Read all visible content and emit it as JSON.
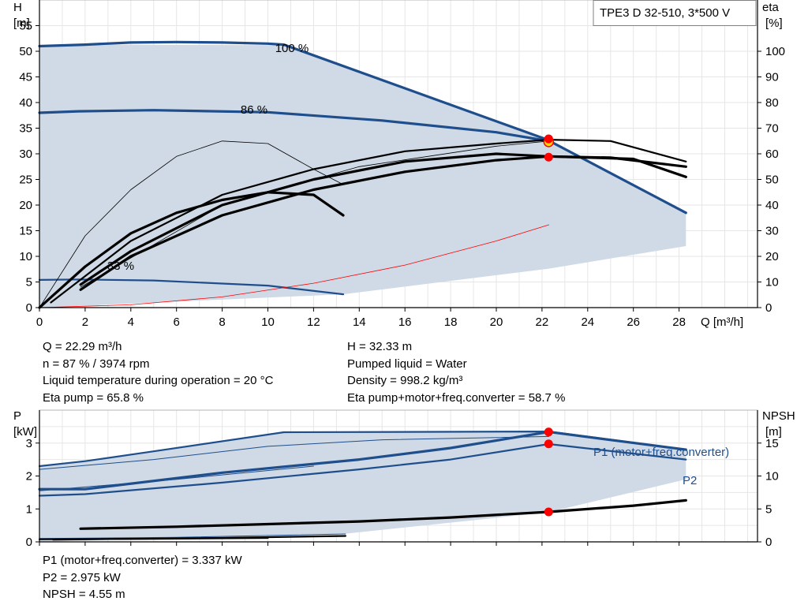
{
  "chart_data": [
    {
      "type": "line",
      "title": "TPE3 D 32-510, 3*500 V",
      "y_axis": {
        "title": "H",
        "unit": "[m]",
        "range": [
          0,
          60
        ],
        "ticks": [
          0,
          5,
          10,
          15,
          20,
          25,
          30,
          35,
          40,
          45,
          50,
          55
        ]
      },
      "y2_axis": {
        "title": "eta",
        "unit": "[%]",
        "range": [
          0,
          120
        ],
        "ticks": [
          0,
          10,
          20,
          30,
          40,
          50,
          60,
          70,
          80,
          90,
          100
        ]
      },
      "x_axis": {
        "label": "Q [m³/h]",
        "range": [
          0,
          30
        ],
        "ticks": [
          0,
          2,
          4,
          6,
          8,
          10,
          12,
          14,
          16,
          18,
          20,
          22,
          24,
          26,
          28
        ]
      },
      "grid": true,
      "curve_labels": [
        {
          "text": "100 %",
          "x": 10.7,
          "y": 53.4
        },
        {
          "text": "86 %",
          "x": 9.3,
          "y": 40.2
        },
        {
          "text": "33 %",
          "x": 3.5,
          "y": 7.1
        }
      ],
      "envelope": {
        "upper": [
          [
            0,
            51.0
          ],
          [
            2.2,
            51.3
          ],
          [
            10.7,
            51.2
          ],
          [
            22.2,
            32.8
          ],
          [
            28.3,
            18.5
          ]
        ],
        "lower": [
          [
            28.3,
            12.0
          ],
          [
            22.3,
            7.6
          ],
          [
            13.3,
            2.6
          ],
          [
            0,
            0
          ]
        ]
      },
      "envelope_light": [
        [
          0,
          51.0
        ],
        [
          2.2,
          51.3
        ],
        [
          2.2,
          42
        ],
        [
          1.5,
          30
        ],
        [
          0.6,
          10
        ],
        [
          0,
          0
        ]
      ],
      "series": [
        {
          "role": "H",
          "style": "blue-thick",
          "values": [
            [
              0,
              51.0
            ],
            [
              2,
              51.3
            ],
            [
              4,
              51.7
            ],
            [
              6,
              51.8
            ],
            [
              8,
              51.7
            ],
            [
              10,
              51.5
            ],
            [
              10.7,
              51.3
            ],
            [
              22.2,
              32.8
            ],
            [
              28.3,
              18.5
            ]
          ]
        },
        {
          "role": "H",
          "style": "blue-thick",
          "values": [
            [
              0,
              38.0
            ],
            [
              1.7,
              38.3
            ],
            [
              5,
              38.5
            ],
            [
              10,
              38.1
            ],
            [
              15,
              36.5
            ],
            [
              20,
              34.2
            ],
            [
              22.3,
              32.5
            ]
          ]
        },
        {
          "role": "H",
          "style": "blue",
          "values": [
            [
              0,
              5.4
            ],
            [
              1.7,
              5.5
            ],
            [
              5,
              5.3
            ],
            [
              10,
              4.3
            ],
            [
              13.3,
              2.6
            ]
          ]
        },
        {
          "role": "eta",
          "style": "black-thick",
          "values": [
            [
              0,
              0
            ],
            [
              2,
              16
            ],
            [
              4,
              29
            ],
            [
              6,
              37
            ],
            [
              8,
              42
            ],
            [
              10,
              45
            ],
            [
              12,
              44
            ],
            [
              13.3,
              36
            ]
          ]
        },
        {
          "role": "eta",
          "style": "black-thick",
          "values": [
            [
              1.8,
              7
            ],
            [
              4,
              20
            ],
            [
              8,
              36
            ],
            [
              12,
              46
            ],
            [
              16,
              53
            ],
            [
              20,
              57.5
            ],
            [
              22.3,
              59
            ],
            [
              25,
              58.5
            ],
            [
              28.3,
              55
            ]
          ]
        },
        {
          "role": "eta",
          "style": "black-thick",
          "values": [
            [
              1.8,
              9
            ],
            [
              4,
              22
            ],
            [
              8,
              40
            ],
            [
              12,
              50
            ],
            [
              16,
              57
            ],
            [
              20,
              60
            ],
            [
              22.3,
              59
            ],
            [
              26,
              58
            ],
            [
              28.3,
              51
            ]
          ]
        },
        {
          "role": "eta",
          "style": "black",
          "values": [
            [
              0.5,
              2
            ],
            [
              4,
              26
            ],
            [
              8,
              44
            ],
            [
              12,
              54
            ],
            [
              16,
              61
            ],
            [
              20,
              64
            ],
            [
              22.3,
              65.5
            ],
            [
              25,
              65
            ],
            [
              28.3,
              57
            ]
          ]
        },
        {
          "role": "eta",
          "style": "black-thin",
          "values": [
            [
              0,
              0
            ],
            [
              2,
              28
            ],
            [
              4,
              46
            ],
            [
              6,
              59
            ],
            [
              8,
              65
            ],
            [
              10,
              64
            ],
            [
              12,
              54
            ],
            [
              13.3,
              48
            ]
          ]
        },
        {
          "role": "eta",
          "style": "black-thin",
          "values": [
            [
              1.8,
              8
            ],
            [
              8,
              40
            ],
            [
              14,
              55
            ],
            [
              20,
              63
            ],
            [
              22.3,
              65
            ]
          ]
        },
        {
          "role": "system",
          "style": "red-thin",
          "values": [
            [
              0,
              0
            ],
            [
              4,
              1.1
            ],
            [
              8,
              4.2
            ],
            [
              12,
              9.5
            ],
            [
              16,
              16.6
            ],
            [
              20,
              26.0
            ],
            [
              22.3,
              32.3
            ]
          ]
        }
      ],
      "points": [
        {
          "x": 22.29,
          "y": 32.9,
          "axis": "H",
          "style": "red"
        },
        {
          "x": 22.29,
          "y": 32.33,
          "axis": "H",
          "style": "yellow-ring"
        },
        {
          "x": 22.29,
          "y": 65.8,
          "axis": "eta",
          "style": "red"
        },
        {
          "x": 22.29,
          "y": 58.7,
          "axis": "eta",
          "style": "red"
        }
      ]
    },
    {
      "type": "line",
      "title": "",
      "y_axis": {
        "title": "P",
        "unit": "[kW]",
        "range": [
          0,
          4
        ],
        "ticks": [
          0,
          1,
          2,
          3
        ]
      },
      "y2_axis": {
        "title": "NPSH",
        "unit": "[m]",
        "range": [
          0,
          20
        ],
        "ticks": [
          0,
          5,
          10,
          15
        ]
      },
      "x_axis": {
        "label": "",
        "range": [
          0,
          30
        ],
        "ticks": [
          0,
          2,
          4,
          6,
          8,
          10,
          12,
          14,
          16,
          18,
          20,
          22,
          24,
          26,
          28
        ]
      },
      "grid": true,
      "curve_labels": [
        {
          "text": "P1 (motor+freq.converter)",
          "x": 24.2,
          "y": 3.25
        },
        {
          "text": "P2",
          "x": 28.3,
          "y": 2.2
        }
      ],
      "envelope": {
        "upper": [
          [
            0,
            2.3
          ],
          [
            2,
            2.45
          ],
          [
            10.7,
            3.33
          ],
          [
            22.3,
            3.35
          ],
          [
            28.3,
            2.8
          ]
        ],
        "lower": [
          [
            28.3,
            1.9
          ],
          [
            22.3,
            0.9
          ],
          [
            13.4,
            0.25
          ],
          [
            0,
            0
          ]
        ]
      },
      "series": [
        {
          "role": "P",
          "style": "blue",
          "values": [
            [
              0,
              2.3
            ],
            [
              2,
              2.45
            ],
            [
              5,
              2.75
            ],
            [
              10.7,
              3.33
            ],
            [
              22.3,
              3.35
            ],
            [
              28.3,
              2.8
            ]
          ]
        },
        {
          "role": "P",
          "style": "blue-thin",
          "values": [
            [
              0,
              2.2
            ],
            [
              5,
              2.5
            ],
            [
              10,
              2.9
            ],
            [
              15,
              3.1
            ],
            [
              22.3,
              3.2
            ]
          ]
        },
        {
          "role": "P",
          "style": "blue-thick",
          "values": [
            [
              0,
              1.6
            ],
            [
              2,
              1.6
            ],
            [
              8,
              2.1
            ],
            [
              14,
              2.5
            ],
            [
              18,
              2.85
            ],
            [
              22.3,
              3.34
            ],
            [
              28.3,
              2.8
            ]
          ]
        },
        {
          "role": "P",
          "style": "blue",
          "values": [
            [
              0,
              1.4
            ],
            [
              2,
              1.45
            ],
            [
              8,
              1.8
            ],
            [
              14,
              2.2
            ],
            [
              18,
              2.5
            ],
            [
              22.3,
              2.97
            ],
            [
              28.3,
              2.5
            ]
          ]
        },
        {
          "role": "P",
          "style": "blue-thin",
          "values": [
            [
              0,
              1.55
            ],
            [
              6,
              1.9
            ],
            [
              12,
              2.3
            ]
          ]
        },
        {
          "role": "P",
          "style": "blue-thin",
          "values": [
            [
              0,
              0.1
            ],
            [
              6,
              0.14
            ],
            [
              13.4,
              0.24
            ]
          ]
        },
        {
          "role": "NPSH",
          "style": "black-thick",
          "values": [
            [
              1.8,
              2.0
            ],
            [
              6,
              2.3
            ],
            [
              10,
              2.7
            ],
            [
              14,
              3.1
            ],
            [
              18,
              3.7
            ],
            [
              22.3,
              4.55
            ],
            [
              26,
              5.5
            ],
            [
              28.3,
              6.3
            ]
          ]
        },
        {
          "role": "NPSH",
          "style": "black",
          "values": [
            [
              0.6,
              0.35
            ],
            [
              4,
              0.45
            ],
            [
              8,
              0.6
            ],
            [
              13.4,
              0.9
            ]
          ]
        },
        {
          "role": "NPSH",
          "style": "black",
          "values": [
            [
              0,
              0.4
            ],
            [
              5,
              0.45
            ],
            [
              10,
              0.6
            ]
          ]
        }
      ],
      "points": [
        {
          "x": 22.29,
          "y": 3.337,
          "axis": "P",
          "style": "red"
        },
        {
          "x": 22.29,
          "y": 2.975,
          "axis": "P",
          "style": "red"
        },
        {
          "x": 22.29,
          "y": 4.55,
          "axis": "NPSH",
          "style": "red"
        }
      ]
    }
  ],
  "info_top": {
    "left": [
      "Q = 22.29 m³/h",
      "n = 87 % / 3974 rpm",
      "Liquid temperature during operation = 20 °C",
      "Eta pump = 65.8 %"
    ],
    "right": [
      "H = 32.33 m",
      "Pumped liquid = Water",
      "Density = 998.2 kg/m³",
      "Eta pump+motor+freq.converter = 58.7 %"
    ]
  },
  "info_bottom": [
    "P1 (motor+freq.converter) = 3.337 kW",
    "P2 = 2.975 kW",
    "NPSH = 4.55 m"
  ],
  "colors": {
    "blue": "#1f4e8c",
    "band": "#cfdae6",
    "light": "#e8f1fa",
    "red": "#ff0000",
    "grid": "#e6e6e6",
    "frame": "#b4b4b4"
  }
}
